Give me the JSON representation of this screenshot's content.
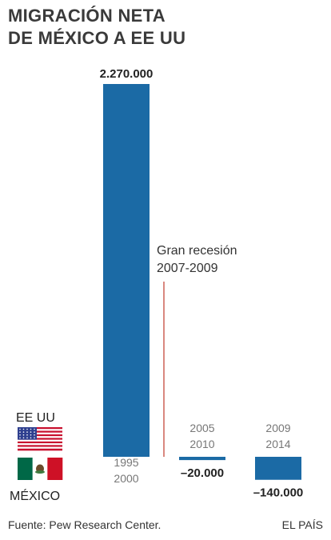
{
  "title_lines": [
    "MIGRACIÓN NETA",
    "DE MÉXICO A EE UU"
  ],
  "chart_data": {
    "type": "bar",
    "categories": [
      [
        "1995",
        "2000"
      ],
      [
        "2005",
        "2010"
      ],
      [
        "2009",
        "2014"
      ]
    ],
    "values": [
      2270000,
      -20000,
      -140000
    ],
    "value_labels": [
      "2.270.000",
      "–20.000",
      "–140.000"
    ],
    "title": "MIGRACIÓN NETA DE MÉXICO A EE UU",
    "xlabel": "",
    "ylabel": "",
    "ylim": [
      -200000,
      2300000
    ],
    "grid": false,
    "bar_color": "#1b6aa5",
    "annotation": {
      "lines": [
        "Gran recesión",
        "2007-2009"
      ],
      "color": "#c0392b"
    },
    "positive_label": "EE UU",
    "negative_label": "MÉXICO"
  },
  "footer": {
    "source": "Fuente: Pew Research Center.",
    "brand": "EL PAÍS"
  },
  "icons": {
    "us_flag": "us-flag-icon",
    "mx_flag": "mexico-flag-icon"
  }
}
